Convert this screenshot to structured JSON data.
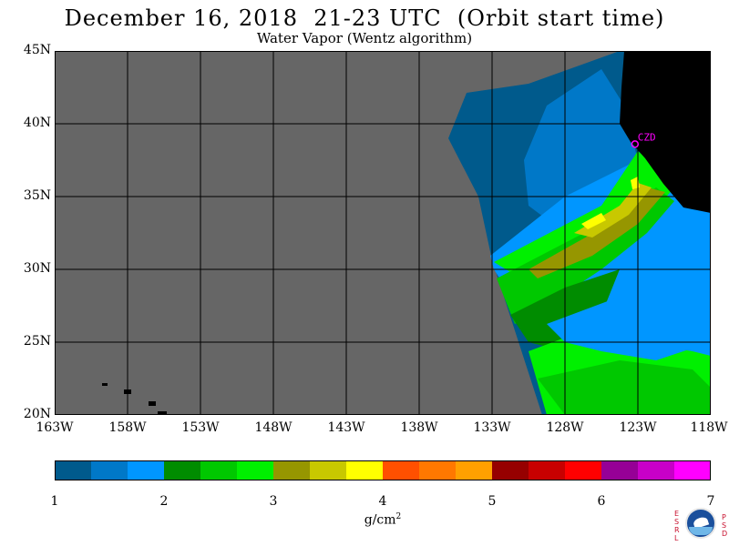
{
  "header": {
    "title": "December 16, 2018  21-23 UTC  (Orbit start time)",
    "subtitle": "Water Vapor (Wentz algorithm)"
  },
  "map": {
    "lat_labels": [
      "45N",
      "40N",
      "35N",
      "30N",
      "25N",
      "20N"
    ],
    "lat_values": [
      45,
      40,
      35,
      30,
      25,
      20
    ],
    "lon_labels": [
      "163W",
      "158W",
      "153W",
      "148W",
      "143W",
      "138W",
      "133W",
      "128W",
      "123W",
      "118W"
    ],
    "lon_values": [
      -163,
      -158,
      -153,
      -148,
      -143,
      -138,
      -133,
      -128,
      -123,
      -118
    ],
    "station_label": "CZD",
    "station_lat": 38.6,
    "station_lon": -123.2,
    "no_data_color": "#666666",
    "land_color": "#000000",
    "station_color": "#ff00ff"
  },
  "colorbar": {
    "tick_labels": [
      "1",
      "2",
      "3",
      "4",
      "5",
      "6",
      "7"
    ],
    "colors": [
      "#005a8c",
      "#0078c8",
      "#0096ff",
      "#008c00",
      "#00c800",
      "#00f000",
      "#969600",
      "#c8c800",
      "#ffff00",
      "#ff5000",
      "#ff7800",
      "#ffa000",
      "#960000",
      "#c80000",
      "#ff0000",
      "#960096",
      "#c800c8",
      "#ff00ff"
    ],
    "units_base": "g/cm",
    "units_exp": "2"
  },
  "logo": {
    "left_letters": [
      "E",
      "S",
      "R",
      "L"
    ],
    "right_letters": [
      "P",
      "S",
      "D"
    ]
  }
}
